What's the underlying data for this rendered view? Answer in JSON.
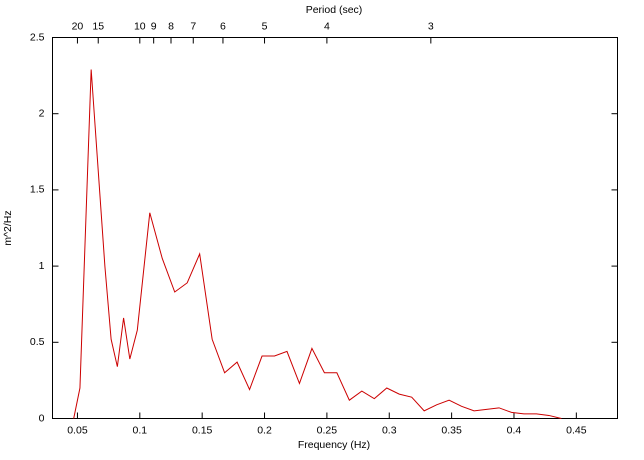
{
  "chart_data": {
    "type": "line",
    "x_label": "Frequency (Hz)",
    "y_label": "m^2/Hz",
    "x2_label": "Period (sec)",
    "xlim": [
      0.03,
      0.483
    ],
    "xticks": [
      0.05,
      0.1,
      0.15,
      0.2,
      0.25,
      0.3,
      0.35,
      0.4,
      0.45
    ],
    "ylim": [
      0,
      2.5
    ],
    "yticks": [
      0,
      0.5,
      1,
      1.5,
      2,
      2.5
    ],
    "x2ticks": [
      20,
      15,
      10,
      9,
      8,
      7,
      6,
      5,
      4,
      3
    ],
    "x2scale": "reciprocal",
    "series": [
      {
        "color": "#cc0000",
        "x": [
          0.047,
          0.052,
          0.061,
          0.072,
          0.077,
          0.082,
          0.087,
          0.092,
          0.098,
          0.108,
          0.118,
          0.128,
          0.138,
          0.148,
          0.158,
          0.168,
          0.178,
          0.188,
          0.198,
          0.208,
          0.218,
          0.228,
          0.238,
          0.248,
          0.258,
          0.268,
          0.278,
          0.288,
          0.298,
          0.308,
          0.318,
          0.328,
          0.338,
          0.348,
          0.358,
          0.368,
          0.378,
          0.388,
          0.398,
          0.408,
          0.418,
          0.428,
          0.438
        ],
        "values": [
          0,
          0.2,
          2.29,
          1.0,
          0.52,
          0.34,
          0.66,
          0.39,
          0.58,
          1.35,
          1.05,
          0.83,
          0.89,
          1.08,
          0.52,
          0.3,
          0.37,
          0.19,
          0.41,
          0.41,
          0.44,
          0.23,
          0.46,
          0.3,
          0.3,
          0.12,
          0.18,
          0.13,
          0.2,
          0.16,
          0.14,
          0.05,
          0.09,
          0.12,
          0.08,
          0.05,
          0.06,
          0.07,
          0.04,
          0.03,
          0.03,
          0.02,
          0
        ]
      }
    ]
  }
}
